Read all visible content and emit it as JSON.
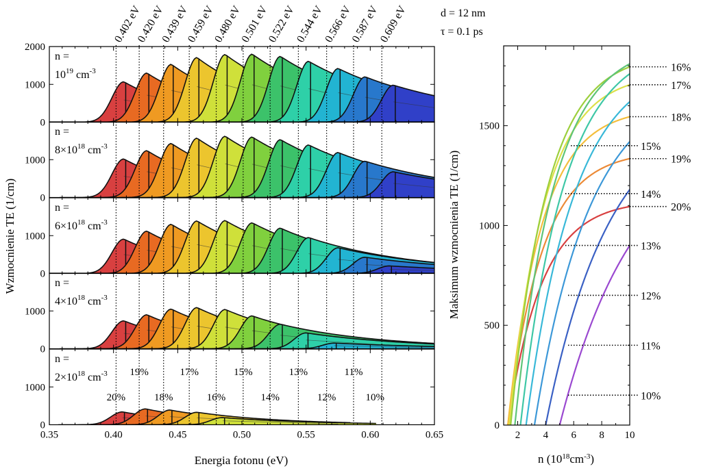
{
  "chart_data": [
    {
      "type": "area",
      "title": "",
      "panel_id": "left",
      "xlabel": "Energia fotonu (eV)",
      "ylabel": "Wzmocnienie TE (1/cm)",
      "xlim": [
        0.35,
        0.65
      ],
      "xticks": [
        "0.35",
        "0.40",
        "0.45",
        "0.50",
        "0.55",
        "0.60",
        "0.65"
      ],
      "xtick_values": [
        0.35,
        0.4,
        0.45,
        0.5,
        0.55,
        0.6,
        0.65
      ],
      "ylim": [
        0,
        2000
      ],
      "yticks": [
        "0",
        "1000",
        "2000"
      ],
      "ytick_values": [
        0,
        1000,
        2000
      ],
      "params": [
        "d = 12 nm",
        "τ = 0.1 ps"
      ],
      "bandgaps": {
        "labels": [
          "0.402 eV",
          "0.420 eV",
          "0.439 eV",
          "0.459 eV",
          "0.480 eV",
          "0.501 eV",
          "0.522 eV",
          "0.544 eV",
          "0.566 eV",
          "0.587 eV",
          "0.609 eV"
        ],
        "values": [
          0.402,
          0.42,
          0.439,
          0.459,
          0.48,
          0.501,
          0.522,
          0.544,
          0.566,
          0.587,
          0.609
        ]
      },
      "indium_content": {
        "labels": [
          "20%",
          "19%",
          "18%",
          "17%",
          "16%",
          "15%",
          "14%",
          "13%",
          "12%",
          "11%",
          "10%"
        ],
        "label_row": [
          "low",
          "high",
          "low",
          "high",
          "low",
          "high",
          "low",
          "high",
          "low",
          "high",
          "low"
        ]
      },
      "colors": [
        "#d84040",
        "#e86a22",
        "#ef9a22",
        "#ecc52e",
        "#cfe03a",
        "#80d03e",
        "#3cc26a",
        "#2ed0a8",
        "#22b4d2",
        "#2878cc",
        "#3040c8",
        "#8038d0"
      ],
      "panels": [
        {
          "label_line1": "n =",
          "label_line2": "10",
          "label_sup": "19",
          "label_unit": " cm",
          "label_unit_sup": "-3",
          "peaks": [
            0.408,
            0.426,
            0.445,
            0.465,
            0.487,
            0.508,
            0.53,
            0.552,
            0.575,
            0.596,
            0.618
          ],
          "values": [
            1070,
            1300,
            1530,
            1710,
            1790,
            1800,
            1740,
            1610,
            1420,
            1200,
            980
          ]
        },
        {
          "label_line1": "n =",
          "label_line2": "8×10",
          "label_sup": "18",
          "label_unit": " cm",
          "label_unit_sup": "-3",
          "peaks": [
            0.408,
            0.426,
            0.445,
            0.465,
            0.487,
            0.508,
            0.53,
            0.552,
            0.575,
            0.596,
            0.618
          ],
          "values": [
            1020,
            1240,
            1430,
            1570,
            1620,
            1600,
            1530,
            1390,
            1190,
            960,
            680
          ]
        },
        {
          "label_line1": "n =",
          "label_line2": "6×10",
          "label_sup": "18",
          "label_unit": " cm",
          "label_unit_sup": "-3",
          "peaks": [
            0.408,
            0.426,
            0.445,
            0.465,
            0.487,
            0.508,
            0.53,
            0.552,
            0.575,
            0.596,
            0.615
          ],
          "values": [
            910,
            1120,
            1300,
            1390,
            1400,
            1340,
            1200,
            950,
            680,
            430,
            200
          ]
        },
        {
          "label_line1": "n =",
          "label_line2": "4×10",
          "label_sup": "18",
          "label_unit": " cm",
          "label_unit_sup": "-3",
          "peaks": [
            0.408,
            0.426,
            0.445,
            0.465,
            0.487,
            0.508,
            0.53,
            0.55,
            0.572
          ],
          "values": [
            740,
            900,
            1050,
            1090,
            1040,
            870,
            650,
            420,
            150
          ]
        },
        {
          "label_line1": "n =",
          "label_line2": "2×10",
          "label_sup": "18",
          "label_unit": " cm",
          "label_unit_sup": "-3",
          "peaks": [
            0.407,
            0.425,
            0.444,
            0.465,
            0.485
          ],
          "values": [
            340,
            420,
            390,
            330,
            190
          ]
        }
      ]
    },
    {
      "type": "line",
      "title": "",
      "panel_id": "right",
      "xlabel": "n (10",
      "xlabel_sup": "18",
      "xlabel_unit": "cm",
      "xlabel_unit_sup": "-3",
      "xlabel_end": ")",
      "ylabel": "Maksimum wzmocnienia TE (1/cm)",
      "xlim": [
        1,
        10
      ],
      "xticks": [
        "2",
        "4",
        "6",
        "8",
        "10"
      ],
      "xtick_values": [
        2,
        4,
        6,
        8,
        10
      ],
      "ylim": [
        0,
        1900
      ],
      "yticks": [
        "0",
        "500",
        "1000",
        "1500"
      ],
      "ytick_values": [
        0,
        500,
        1000,
        1500
      ],
      "series": [
        {
          "name": "20%",
          "color": "#d84040",
          "x0": 1.3,
          "ymax": 1095,
          "label_y": 1095,
          "label_x": 10
        },
        {
          "name": "19%",
          "color": "#ec8a36",
          "x0": 1.3,
          "ymax": 1335,
          "label_y": 1335,
          "label_x": 10
        },
        {
          "name": "18%",
          "color": "#f4be3c",
          "x0": 1.3,
          "ymax": 1545,
          "label_y": 1545,
          "label_x": 10
        },
        {
          "name": "17%",
          "color": "#dce048",
          "x0": 1.4,
          "ymax": 1705,
          "label_y": 1705,
          "label_x": 10
        },
        {
          "name": "16%",
          "color": "#9ccf3c",
          "x0": 1.5,
          "ymax": 1795,
          "label_y": 1795,
          "label_x": 10
        },
        {
          "name": "15%",
          "color": "#5ec478",
          "x0": 1.8,
          "ymax": 1810,
          "label_y": 1400,
          "label_x": 5.8
        },
        {
          "name": "14%",
          "color": "#3ec7a6",
          "x0": 2.2,
          "ymax": 1760,
          "label_y": 1160,
          "label_x": 5.4
        },
        {
          "name": "13%",
          "color": "#38b8d8",
          "x0": 2.6,
          "ymax": 1620,
          "label_y": 900,
          "label_x": 5.4
        },
        {
          "name": "12%",
          "color": "#3c98d8",
          "x0": 3.2,
          "ymax": 1420,
          "label_y": 650,
          "label_x": 5.6
        },
        {
          "name": "11%",
          "color": "#3a60c4",
          "x0": 4.0,
          "ymax": 1180,
          "label_y": 400,
          "label_x": 5.6
        },
        {
          "name": "10%",
          "color": "#9a48d0",
          "x0": 5.0,
          "ymax": 900,
          "label_y": 150,
          "label_x": 5.6
        }
      ]
    }
  ]
}
